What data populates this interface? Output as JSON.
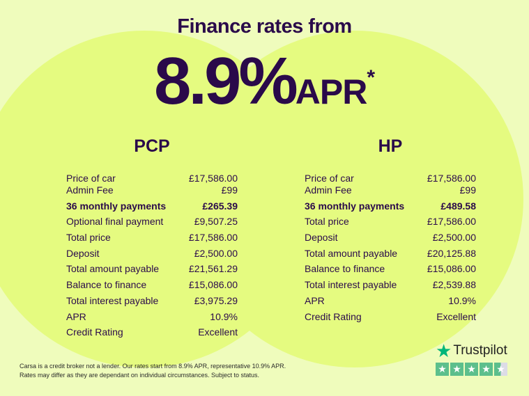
{
  "header": {
    "title": "Finance rates from",
    "rate": "8.9%",
    "apr": "APR",
    "asterisk": "*"
  },
  "pcp": {
    "heading": "PCP",
    "rows": [
      {
        "label": "Price of car",
        "value": "£17,586.00"
      },
      {
        "label": "Admin Fee",
        "value": "£99"
      },
      {
        "label": "36 monthly payments",
        "value": "£265.39"
      },
      {
        "label": "Optional final payment",
        "value": "£9,507.25"
      },
      {
        "label": "Total price",
        "value": "£17,586.00"
      },
      {
        "label": "Deposit",
        "value": "£2,500.00"
      },
      {
        "label": "Total amount payable",
        "value": "£21,561.29"
      },
      {
        "label": "Balance to finance",
        "value": "£15,086.00"
      },
      {
        "label": "Total interest payable",
        "value": "£3,975.29"
      },
      {
        "label": "APR",
        "value": "10.9%"
      },
      {
        "label": "Credit Rating",
        "value": "Excellent"
      }
    ]
  },
  "hp": {
    "heading": "HP",
    "rows": [
      {
        "label": "Price of car",
        "value": "£17,586.00"
      },
      {
        "label": "Admin Fee",
        "value": "£99"
      },
      {
        "label": "36 monthly payments",
        "value": "£489.58"
      },
      {
        "label": "Total price",
        "value": "£17,586.00"
      },
      {
        "label": "Deposit",
        "value": "£2,500.00"
      },
      {
        "label": "Total amount payable",
        "value": "£20,125.88"
      },
      {
        "label": "Balance to finance",
        "value": "£15,086.00"
      },
      {
        "label": "Total interest payable",
        "value": "£2,539.88"
      },
      {
        "label": "APR",
        "value": "10.9%"
      },
      {
        "label": "Credit Rating",
        "value": "Excellent"
      }
    ]
  },
  "disclaimer": {
    "line1": "Carsa is a credit broker not a lender. Our rates start from 8.9% APR, representative 10.9% APR.",
    "line2": "Rates may differ as they are dependant on individual circumstances. Subject to status."
  },
  "trustpilot": {
    "label": "Trustpilot",
    "rating_stars": 4.5,
    "icon": "star-icon",
    "color": "#00b67a"
  },
  "colors": {
    "background": "#effcbc",
    "circle": "#e5fb80",
    "text": "#2a0a4a"
  }
}
